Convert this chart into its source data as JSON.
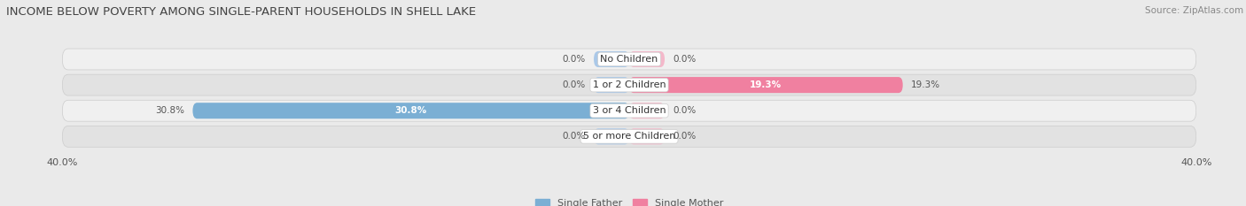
{
  "title": "INCOME BELOW POVERTY AMONG SINGLE-PARENT HOUSEHOLDS IN SHELL LAKE",
  "source": "Source: ZipAtlas.com",
  "categories": [
    "No Children",
    "1 or 2 Children",
    "3 or 4 Children",
    "5 or more Children"
  ],
  "single_father": [
    0.0,
    0.0,
    30.8,
    0.0
  ],
  "single_mother": [
    0.0,
    19.3,
    0.0,
    0.0
  ],
  "x_min": -40.0,
  "x_max": 40.0,
  "father_color": "#7bafd4",
  "mother_color": "#f080a0",
  "father_stub_color": "#aac8e8",
  "mother_stub_color": "#f4b8ca",
  "father_label": "Single Father",
  "mother_label": "Single Mother",
  "bg_color": "#eaeaea",
  "row_color_light": "#f0f0f0",
  "row_color_dark": "#e2e2e2",
  "title_fontsize": 9.5,
  "source_fontsize": 7.5,
  "value_fontsize": 7.5,
  "tick_fontsize": 8,
  "category_fontsize": 8,
  "legend_fontsize": 8
}
